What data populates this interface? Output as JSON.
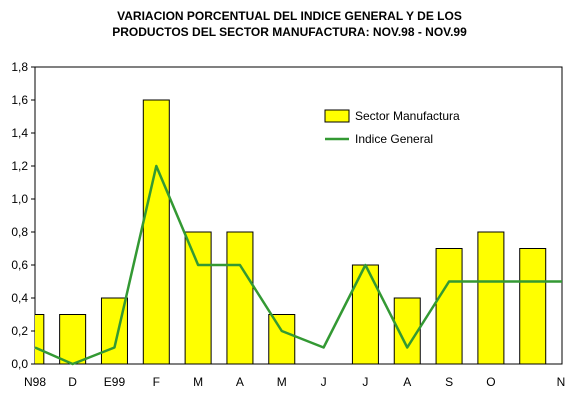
{
  "chart_data": {
    "type": "bar",
    "title_lines": [
      "VARIACION PORCENTUAL DEL INDICE GENERAL Y DE LOS",
      "PRODUCTOS DEL SECTOR MANUFACTURA: NOV.98 - NOV.99"
    ],
    "categories": [
      "N98",
      "D",
      "E99",
      "F",
      "M",
      "A",
      "M",
      "J",
      "J",
      "A",
      "S",
      "O",
      "N"
    ],
    "series": [
      {
        "name": "Sector Manufactura",
        "type": "bar",
        "color": "#ffff00",
        "values": [
          0.3,
          0.3,
          0.4,
          1.6,
          0.8,
          0.8,
          0.3,
          0.0,
          0.6,
          0.4,
          0.7,
          0.8,
          0.7
        ]
      },
      {
        "name": "Indice General",
        "type": "line",
        "color": "#339933",
        "values": [
          0.1,
          0.0,
          0.1,
          1.2,
          0.6,
          0.6,
          0.2,
          0.1,
          0.6,
          0.1,
          0.5,
          0.5,
          0.5
        ]
      }
    ],
    "ylim": [
      0,
      1.8
    ],
    "yticks": [
      "0,0",
      "0,2",
      "0,4",
      "0,6",
      "0,8",
      "1,0",
      "1,2",
      "1,4",
      "1,6",
      "1,8"
    ],
    "grid": false,
    "legend_position": "top-right"
  }
}
